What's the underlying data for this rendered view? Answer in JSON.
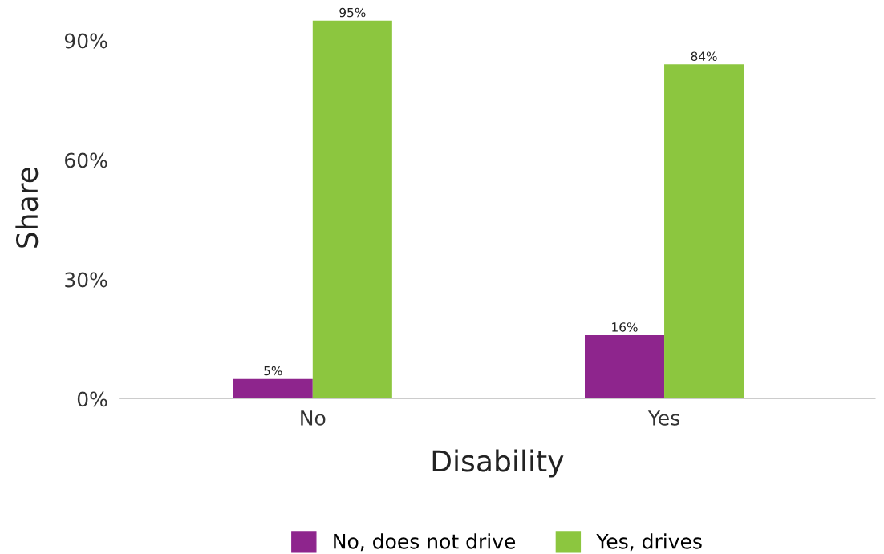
{
  "chart_data": {
    "type": "bar",
    "xlabel": "Disability",
    "ylabel": "Share",
    "categories": [
      "No",
      "Yes"
    ],
    "series": [
      {
        "name": "No, does not drive",
        "color": "#8e258d",
        "values": [
          5,
          16
        ],
        "value_labels": [
          "5%",
          "16%"
        ]
      },
      {
        "name": "Yes, drives",
        "color": "#8cc63f",
        "values": [
          95,
          84
        ],
        "value_labels": [
          "95%",
          "84%"
        ]
      }
    ],
    "ylim": [
      0,
      96
    ],
    "yticks": [
      {
        "value": 0,
        "label": "0%"
      },
      {
        "value": 30,
        "label": "30%"
      },
      {
        "value": 60,
        "label": "60%"
      },
      {
        "value": 90,
        "label": "90%"
      }
    ],
    "grid": false,
    "legend": "bottom"
  }
}
